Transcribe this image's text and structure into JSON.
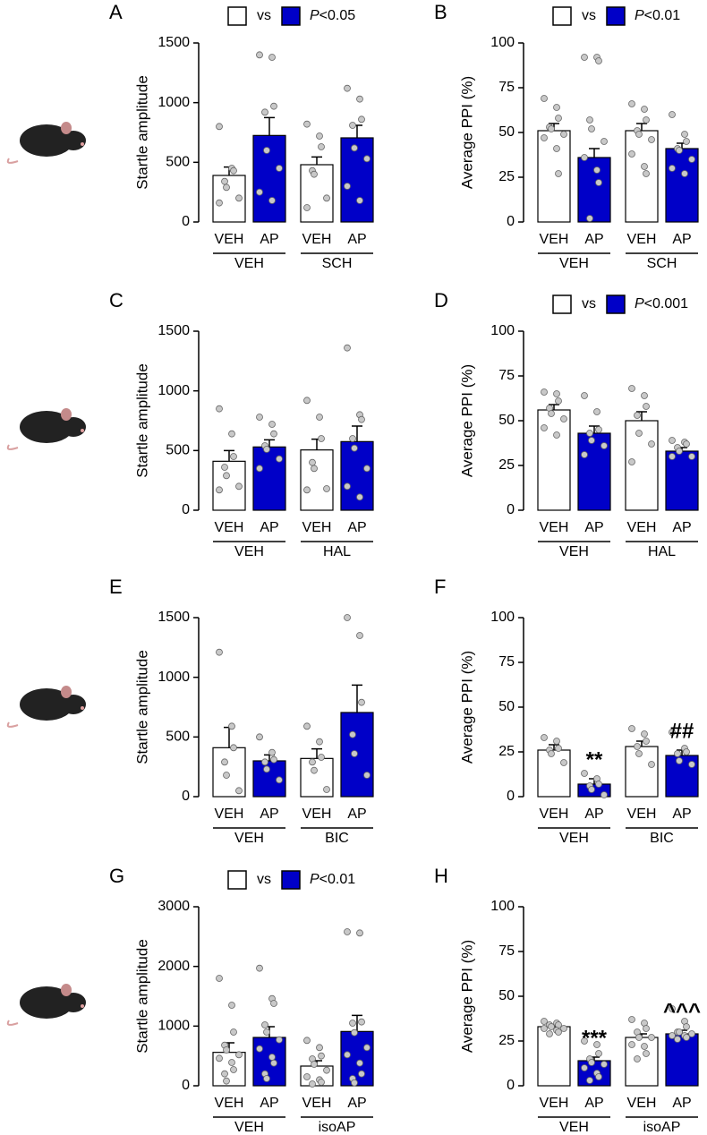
{
  "chart_data": [
    {
      "type": "bar",
      "panel": "A",
      "ylabel": "Startle amplitude",
      "ylim": [
        0,
        1500
      ],
      "yticks": [
        0,
        500,
        1000,
        1500
      ],
      "categories": [
        "VEH",
        "AP",
        "VEH",
        "AP"
      ],
      "groups": [
        "VEH",
        "SCH"
      ],
      "values": [
        390,
        725,
        480,
        705
      ],
      "errors": [
        70,
        150,
        65,
        105
      ],
      "colors": [
        "#ffffff",
        "#0000c8",
        "#ffffff",
        "#0000c8"
      ],
      "points": [
        [
          800,
          450,
          430,
          340,
          290,
          200,
          160
        ],
        [
          1400,
          1380,
          970,
          920,
          600,
          450,
          250,
          180
        ],
        [
          820,
          720,
          630,
          430,
          400,
          200,
          120
        ],
        [
          1120,
          1030,
          860,
          810,
          620,
          530,
          300,
          180
        ]
      ],
      "legend": {
        "vs": "vs",
        "p": "P",
        "threshold": "<0.05"
      }
    },
    {
      "type": "bar",
      "panel": "B",
      "ylabel": "Average PPI (%)",
      "ylim": [
        0,
        100
      ],
      "yticks": [
        0,
        25,
        50,
        75,
        100
      ],
      "categories": [
        "VEH",
        "AP",
        "VEH",
        "AP"
      ],
      "groups": [
        "VEH",
        "SCH"
      ],
      "values": [
        51,
        36,
        51,
        41
      ],
      "errors": [
        4,
        5,
        4,
        3
      ],
      "colors": [
        "#ffffff",
        "#0000c8",
        "#ffffff",
        "#0000c8"
      ],
      "points": [
        [
          69,
          64,
          58,
          53,
          52,
          49,
          47,
          41,
          27
        ],
        [
          92,
          92,
          90,
          57,
          52,
          45,
          36,
          29,
          22,
          2
        ],
        [
          66,
          63,
          57,
          51,
          49,
          46,
          38,
          31,
          27
        ],
        [
          60,
          49,
          45,
          41,
          40,
          35,
          30,
          27
        ]
      ],
      "legend": {
        "vs": "vs",
        "p": "P",
        "threshold": "<0.01"
      }
    },
    {
      "type": "bar",
      "panel": "C",
      "ylabel": "Startle amplitude",
      "ylim": [
        0,
        1500
      ],
      "yticks": [
        0,
        500,
        1000,
        1500
      ],
      "categories": [
        "VEH",
        "AP",
        "VEH",
        "AP"
      ],
      "groups": [
        "VEH",
        "HAL"
      ],
      "values": [
        410,
        530,
        505,
        575
      ],
      "errors": [
        90,
        60,
        90,
        130
      ],
      "colors": [
        "#ffffff",
        "#0000c8",
        "#ffffff",
        "#0000c8"
      ],
      "points": [
        [
          850,
          640,
          450,
          360,
          290,
          200,
          170
        ],
        [
          780,
          720,
          640,
          540,
          510,
          430,
          350
        ],
        [
          920,
          780,
          600,
          400,
          350,
          180,
          170
        ],
        [
          1360,
          800,
          760,
          600,
          520,
          350,
          200,
          110
        ]
      ]
    },
    {
      "type": "bar",
      "panel": "D",
      "ylabel": "Average PPI (%)",
      "ylim": [
        0,
        100
      ],
      "yticks": [
        0,
        25,
        50,
        75,
        100
      ],
      "categories": [
        "VEH",
        "AP",
        "VEH",
        "AP"
      ],
      "groups": [
        "VEH",
        "HAL"
      ],
      "values": [
        56,
        43,
        50,
        33
      ],
      "errors": [
        3,
        4,
        5,
        2
      ],
      "colors": [
        "#ffffff",
        "#0000c8",
        "#ffffff",
        "#0000c8"
      ],
      "points": [
        [
          66,
          65,
          61,
          57,
          54,
          51,
          46,
          42
        ],
        [
          64,
          55,
          45,
          43,
          39,
          36,
          31
        ],
        [
          68,
          64,
          58,
          53,
          43,
          37,
          27
        ],
        [
          39,
          38,
          37,
          35,
          33,
          30,
          30
        ]
      ],
      "legend": {
        "vs": "vs",
        "p": "P",
        "threshold": "<0.001"
      }
    },
    {
      "type": "bar",
      "panel": "E",
      "ylabel": "Startle amplitude",
      "ylim": [
        0,
        1500
      ],
      "yticks": [
        0,
        500,
        1000,
        1500
      ],
      "categories": [
        "VEH",
        "AP",
        "VEH",
        "AP"
      ],
      "groups": [
        "VEH",
        "BIC"
      ],
      "values": [
        410,
        300,
        320,
        705
      ],
      "errors": [
        170,
        50,
        80,
        230
      ],
      "colors": [
        "#ffffff",
        "#0000c8",
        "#ffffff",
        "#0000c8"
      ],
      "points": [
        [
          1210,
          590,
          410,
          290,
          180,
          50
        ],
        [
          500,
          370,
          310,
          290,
          230,
          140
        ],
        [
          590,
          460,
          330,
          290,
          220,
          60
        ],
        [
          1500,
          1350,
          790,
          520,
          360,
          180
        ]
      ]
    },
    {
      "type": "bar",
      "panel": "F",
      "ylabel": "Average PPI (%)",
      "ylim": [
        0,
        100
      ],
      "yticks": [
        0,
        25,
        50,
        75,
        100
      ],
      "categories": [
        "VEH",
        "AP",
        "VEH",
        "AP"
      ],
      "groups": [
        "VEH",
        "BIC"
      ],
      "values": [
        26,
        7,
        28,
        23
      ],
      "errors": [
        3,
        3,
        3,
        3
      ],
      "colors": [
        "#ffffff",
        "#0000c8",
        "#ffffff",
        "#0000c8"
      ],
      "points": [
        [
          33,
          31,
          27,
          26,
          24,
          19
        ],
        [
          13,
          10,
          7,
          6,
          4,
          1
        ],
        [
          38,
          35,
          31,
          28,
          24,
          18
        ],
        [
          36,
          27,
          25,
          24,
          20,
          18
        ]
      ],
      "bar_labels": [
        null,
        "**",
        null,
        "##"
      ]
    },
    {
      "type": "bar",
      "panel": "G",
      "ylabel": "Startle amplitude",
      "ylim": [
        0,
        3000
      ],
      "yticks": [
        0,
        1000,
        2000,
        3000
      ],
      "categories": [
        "VEH",
        "AP",
        "VEH",
        "AP"
      ],
      "groups": [
        "VEH",
        "isoAP"
      ],
      "values": [
        560,
        810,
        330,
        910
      ],
      "errors": [
        160,
        180,
        90,
        270
      ],
      "colors": [
        "#ffffff",
        "#0000c8",
        "#ffffff",
        "#0000c8"
      ],
      "points": [
        [
          1800,
          1350,
          900,
          680,
          600,
          520,
          460,
          390,
          270,
          200,
          80
        ],
        [
          1970,
          1460,
          1380,
          1020,
          900,
          770,
          620,
          480,
          380,
          200,
          120
        ],
        [
          760,
          640,
          500,
          450,
          360,
          260,
          150,
          100,
          60,
          30
        ],
        [
          2580,
          2560,
          1070,
          1050,
          890,
          640,
          520,
          380,
          200,
          120,
          50
        ]
      ],
      "legend": {
        "vs": "vs",
        "p": "P",
        "threshold": "<0.01"
      }
    },
    {
      "type": "bar",
      "panel": "H",
      "ylabel": "Average PPI (%)",
      "ylim": [
        0,
        100
      ],
      "yticks": [
        0,
        25,
        50,
        75,
        100
      ],
      "categories": [
        "VEH",
        "AP",
        "VEH",
        "AP"
      ],
      "groups": [
        "VEH",
        "isoAP"
      ],
      "values": [
        33,
        14,
        27,
        29
      ],
      "errors": [
        1,
        2,
        2,
        2
      ],
      "colors": [
        "#ffffff",
        "#0000c8",
        "#ffffff",
        "#0000c8"
      ],
      "points": [
        [
          36,
          35,
          34,
          34,
          33,
          32,
          32,
          31,
          30,
          29
        ],
        [
          25,
          23,
          18,
          15,
          13,
          12,
          10,
          7,
          5,
          3
        ],
        [
          37,
          35,
          32,
          30,
          27,
          27,
          23,
          22,
          18,
          15
        ],
        [
          43,
          36,
          33,
          30,
          30,
          29,
          28,
          28,
          27,
          26
        ]
      ],
      "bar_labels": [
        null,
        "***",
        null,
        "^^^"
      ]
    }
  ]
}
